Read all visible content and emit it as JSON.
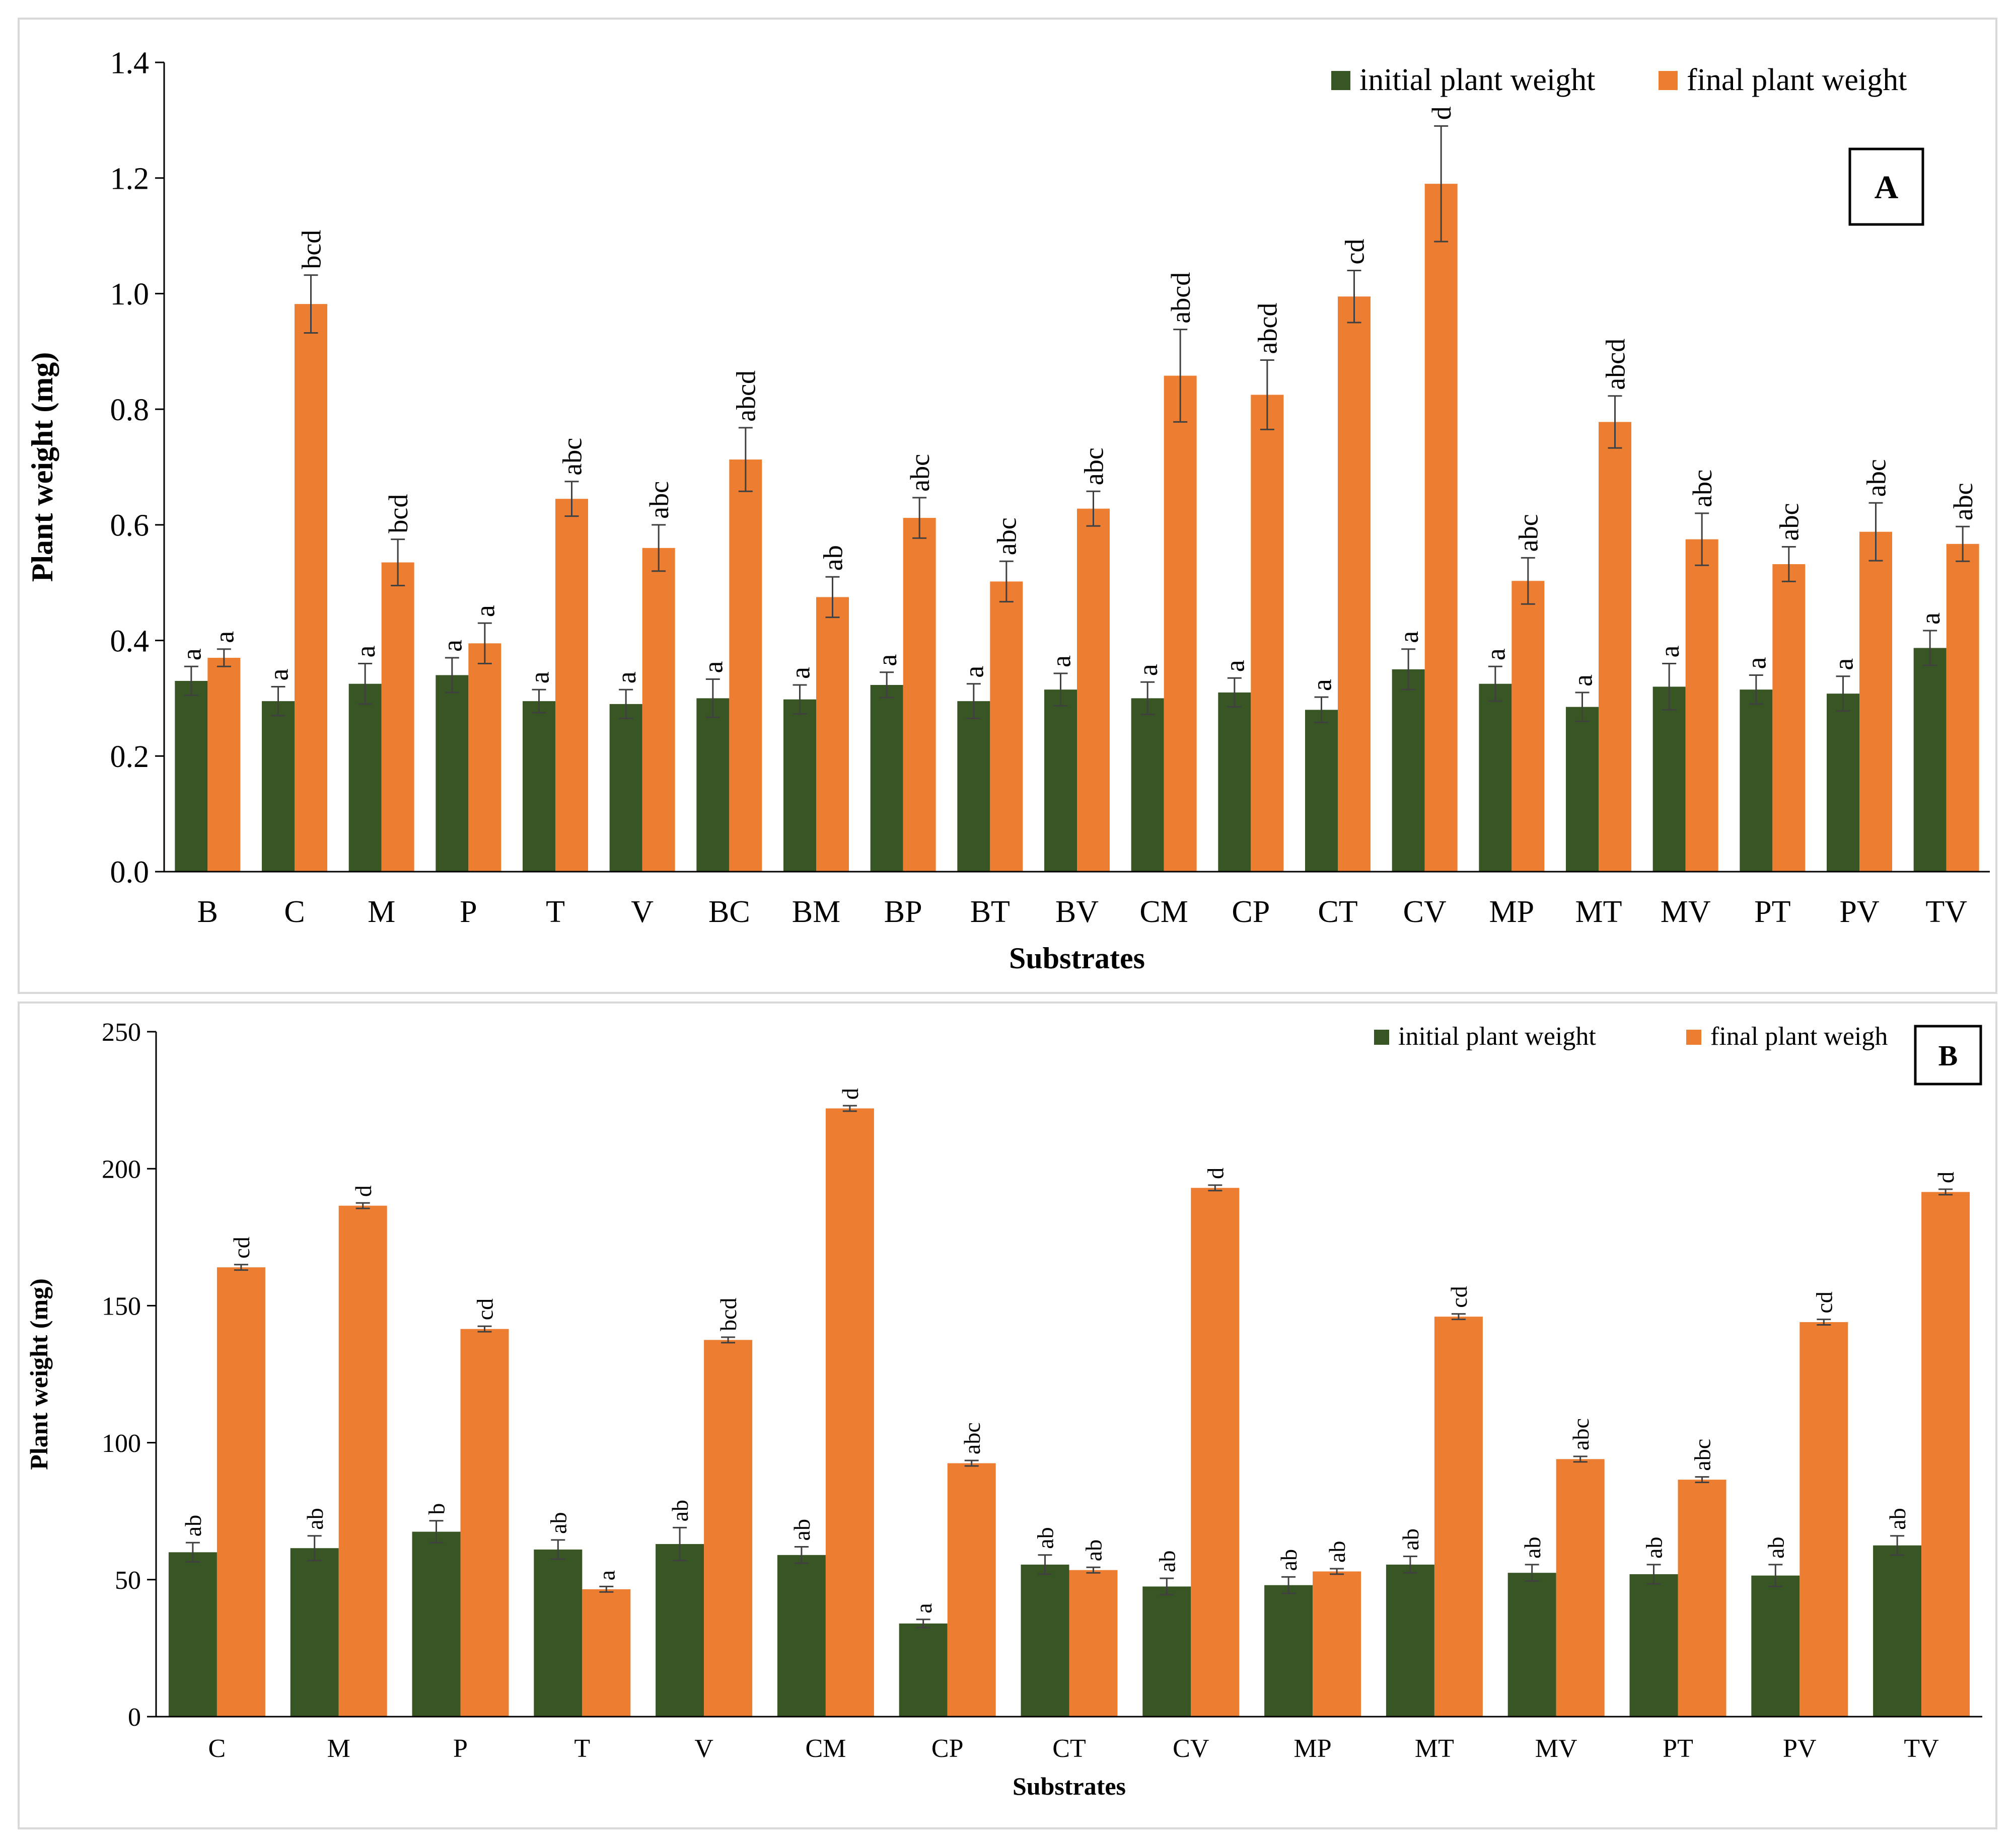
{
  "colors": {
    "initial": "#375623",
    "final": "#ed7d31",
    "axis": "#000000",
    "error": "#404040"
  },
  "chart_data": [
    {
      "panel": "A",
      "type": "bar",
      "title": "",
      "xlabel": "Substrates",
      "ylabel": "Plant weight (mg)",
      "ylim": [
        0,
        1.4
      ],
      "yticks": [
        "0.0",
        "0.2",
        "0.4",
        "0.6",
        "0.8",
        "1.0",
        "1.2",
        "1.4"
      ],
      "categories": [
        "B",
        "C",
        "M",
        "P",
        "T",
        "V",
        "BC",
        "BM",
        "BP",
        "BT",
        "BV",
        "CM",
        "CP",
        "CT",
        "CV",
        "MP",
        "MT",
        "MV",
        "PT",
        "PV",
        "TV"
      ],
      "legend_position": "top-right",
      "series": [
        {
          "name": "initial plant weight",
          "values": [
            0.33,
            0.295,
            0.325,
            0.34,
            0.295,
            0.29,
            0.3,
            0.298,
            0.323,
            0.295,
            0.315,
            0.3,
            0.31,
            0.28,
            0.35,
            0.325,
            0.285,
            0.32,
            0.315,
            0.308,
            0.387
          ],
          "errors": [
            0.025,
            0.025,
            0.035,
            0.03,
            0.02,
            0.025,
            0.033,
            0.025,
            0.022,
            0.03,
            0.028,
            0.028,
            0.025,
            0.022,
            0.035,
            0.03,
            0.025,
            0.04,
            0.025,
            0.03,
            0.03
          ],
          "letters": [
            "a",
            "a",
            "a",
            "a",
            "a",
            "a",
            "a",
            "a",
            "a",
            "a",
            "a",
            "a",
            "a",
            "a",
            "a",
            "a",
            "a",
            "a",
            "a",
            "a",
            "a"
          ]
        },
        {
          "name": "final plant weight",
          "values": [
            0.37,
            0.982,
            0.535,
            0.395,
            0.645,
            0.56,
            0.713,
            0.475,
            0.612,
            0.502,
            0.628,
            0.858,
            0.825,
            0.995,
            1.19,
            0.503,
            0.778,
            0.575,
            0.532,
            0.588,
            0.567
          ],
          "errors": [
            0.015,
            0.05,
            0.04,
            0.035,
            0.03,
            0.04,
            0.055,
            0.035,
            0.035,
            0.035,
            0.03,
            0.08,
            0.06,
            0.045,
            0.1,
            0.04,
            0.045,
            0.045,
            0.03,
            0.05,
            0.03
          ],
          "letters": [
            "a",
            "bcd",
            "bcd",
            "a",
            "abc",
            "abc",
            "abcd",
            "ab",
            "abc",
            "abc",
            "abc",
            "abcd",
            "abcd",
            "cd",
            "d",
            "abc",
            "abcd",
            "abc",
            "abc",
            "abc",
            "abc"
          ]
        }
      ],
      "panel_label": "A"
    },
    {
      "panel": "B",
      "type": "bar",
      "title": "",
      "xlabel": "Substrates",
      "ylabel": "Plant weight (mg)",
      "ylim": [
        0,
        250
      ],
      "yticks": [
        "0",
        "50",
        "100",
        "150",
        "200",
        "250"
      ],
      "categories": [
        "C",
        "M",
        "P",
        "T",
        "V",
        "CM",
        "CP",
        "CT",
        "CV",
        "MP",
        "MT",
        "MV",
        "PT",
        "PV",
        "TV"
      ],
      "legend_position": "top-right",
      "series": [
        {
          "name": "initial plant weight",
          "values": [
            60,
            61.5,
            67.5,
            61,
            63,
            59,
            34,
            55.5,
            47.5,
            48,
            55.5,
            52.5,
            52,
            51.5,
            62.5
          ],
          "errors": [
            3.5,
            4.5,
            4,
            3.5,
            6,
            3,
            1.5,
            3.5,
            3,
            3,
            3,
            3,
            3.5,
            4,
            3.5
          ],
          "letters": [
            "ab",
            "ab",
            "b",
            "ab",
            "ab",
            "ab",
            "a",
            "ab",
            "ab",
            "ab",
            "ab",
            "ab",
            "ab",
            "ab",
            "ab"
          ]
        },
        {
          "name": "final plant weigh",
          "values": [
            164,
            186.5,
            141.5,
            46.5,
            137.5,
            222,
            92.5,
            53.5,
            193,
            53,
            146,
            94,
            86.5,
            144,
            191.5
          ],
          "errors": [
            1,
            1,
            1,
            1,
            1,
            1,
            1,
            1,
            1,
            1,
            1,
            1,
            1,
            1,
            1
          ],
          "letters": [
            "cd",
            "d",
            "cd",
            "a",
            "bcd",
            "d",
            "abc",
            "ab",
            "d",
            "ab",
            "cd",
            "abc",
            "abc",
            "cd",
            "d"
          ]
        }
      ],
      "panel_label": "B"
    }
  ]
}
